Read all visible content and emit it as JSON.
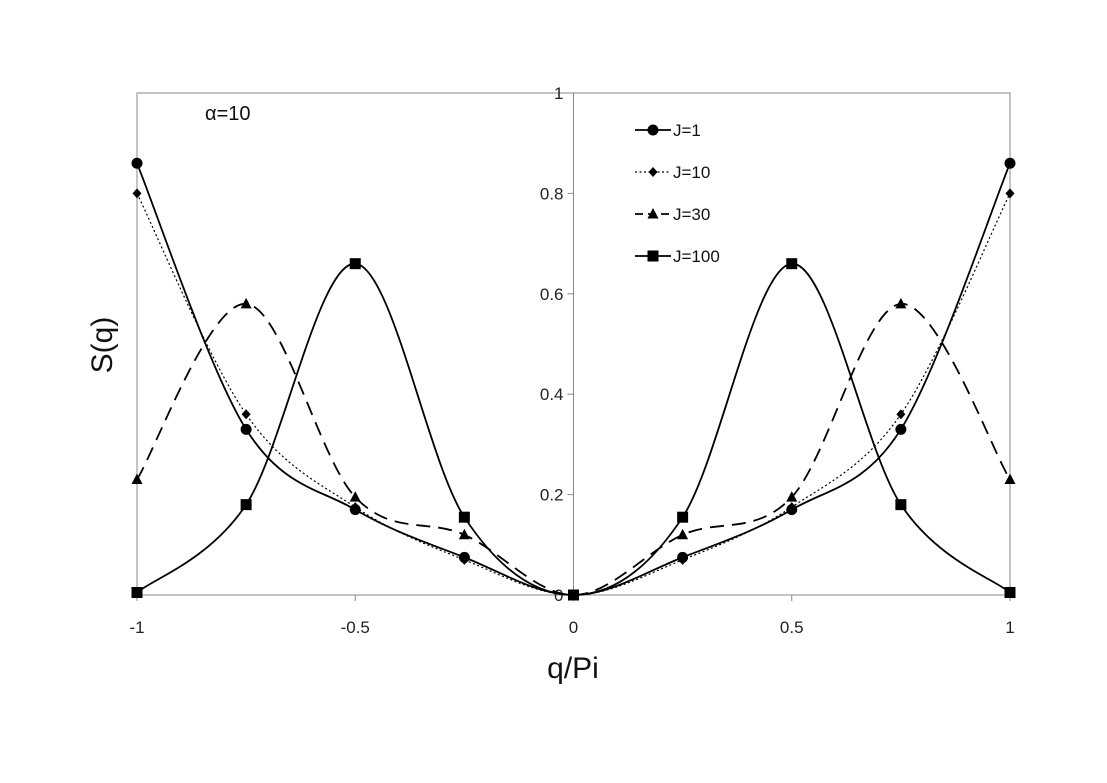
{
  "chart_data": {
    "type": "line",
    "title": "",
    "xlabel": "q/Pi",
    "ylabel": "S(q)",
    "annotation": "α=10",
    "xlim": [
      -1,
      1
    ],
    "ylim": [
      0,
      1
    ],
    "xticks": [
      -1,
      -0.5,
      0,
      0.5,
      1
    ],
    "xtick_labels": [
      "-1",
      "-0.5",
      "0",
      "0.5",
      "1"
    ],
    "yticks": [
      0,
      0.2,
      0.4,
      0.6,
      0.8,
      1
    ],
    "ytick_labels": [
      "0",
      "0.2",
      "0.4",
      "0.6",
      "0.8",
      "1"
    ],
    "grid": false,
    "legend_position": "top-center",
    "x": [
      -1,
      -0.75,
      -0.5,
      -0.25,
      0,
      0.25,
      0.5,
      0.75,
      1
    ],
    "series": [
      {
        "name": "J=1",
        "marker": "circle",
        "line": "solid",
        "values": [
          0.86,
          0.33,
          0.17,
          0.075,
          0.0,
          0.075,
          0.17,
          0.33,
          0.86
        ]
      },
      {
        "name": "J=10",
        "marker": "diamond",
        "line": "dotted",
        "values": [
          0.8,
          0.36,
          0.175,
          0.07,
          0.0,
          0.07,
          0.175,
          0.36,
          0.8
        ]
      },
      {
        "name": "J=30",
        "marker": "triangle",
        "line": "dashed",
        "values": [
          0.23,
          0.58,
          0.195,
          0.12,
          0.0,
          0.12,
          0.195,
          0.58,
          0.23
        ]
      },
      {
        "name": "J=100",
        "marker": "square",
        "line": "solid",
        "values": [
          0.005,
          0.18,
          0.66,
          0.155,
          0.0,
          0.155,
          0.66,
          0.18,
          0.005
        ]
      }
    ]
  }
}
